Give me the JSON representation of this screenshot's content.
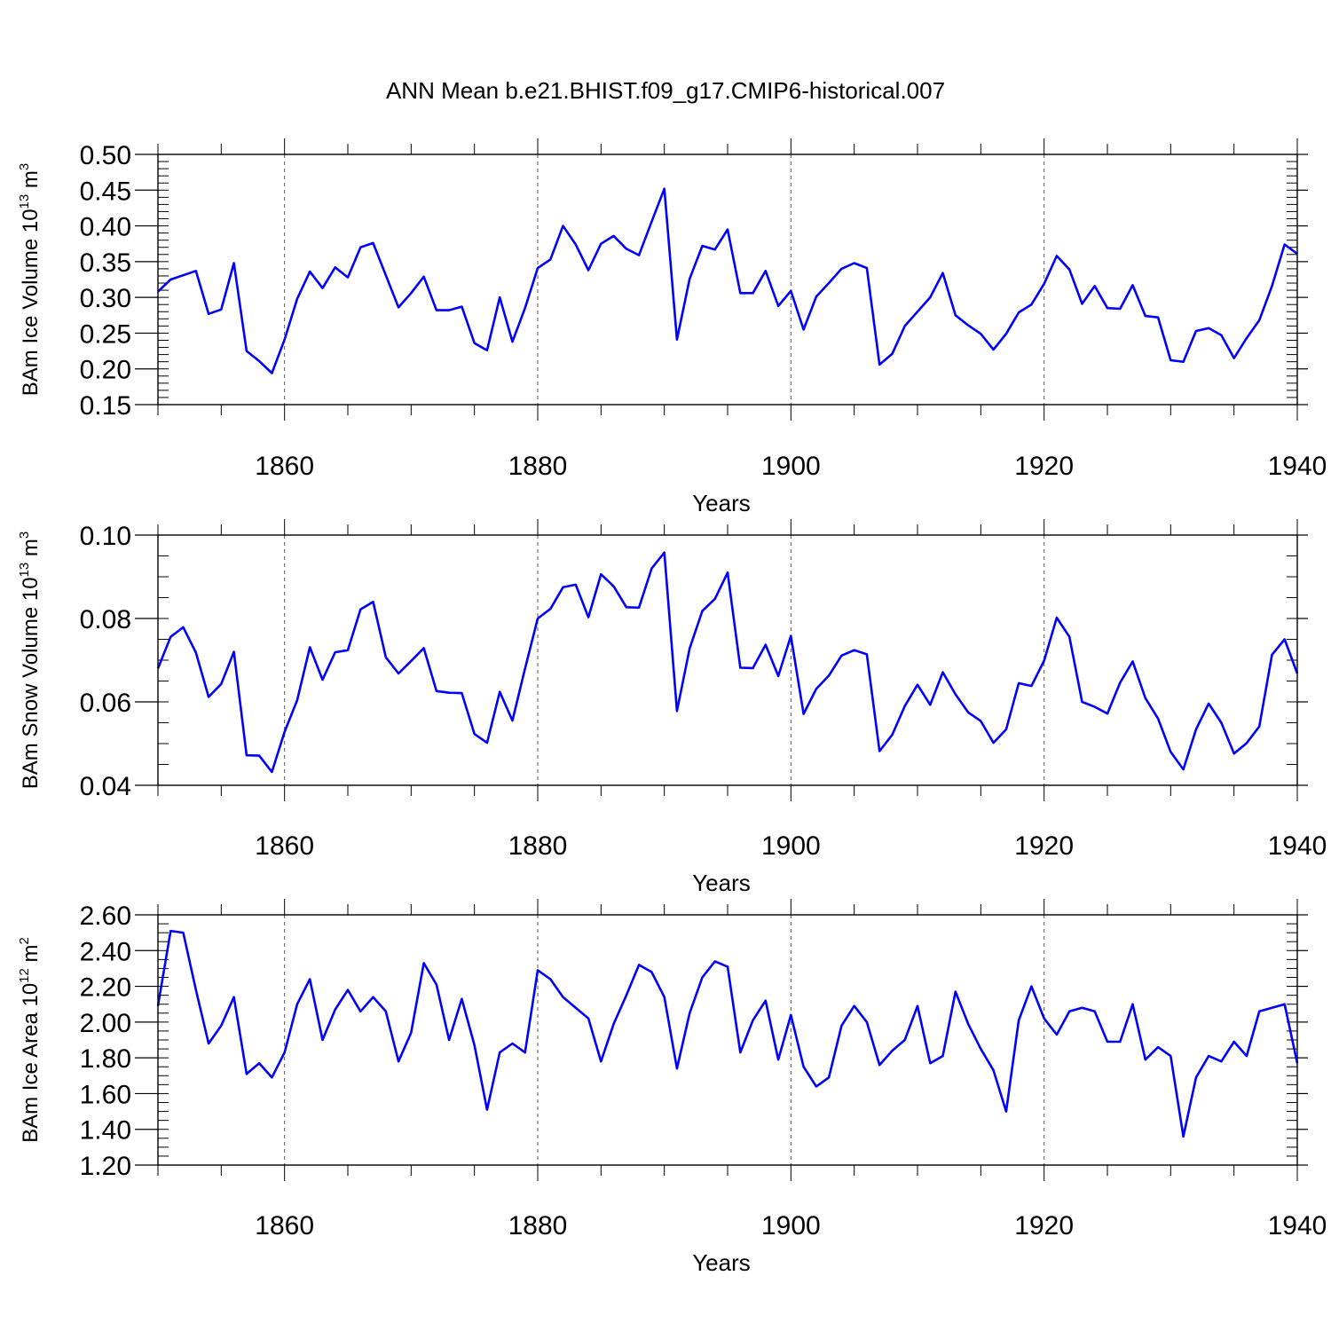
{
  "title": "ANN Mean b.e21.BHIST.f09_g17.CMIP6-historical.007",
  "chart_data": [
    {
      "type": "line",
      "ylabel": "BAm Ice Volume 10",
      "ylabel_exp": "13",
      "ylabel_unit": " m",
      "ylabel_unit_exp": "3",
      "xlabel": "Years",
      "xlim": [
        1850,
        1940
      ],
      "ylim": [
        0.15,
        0.5
      ],
      "yticks": [
        0.15,
        0.2,
        0.25,
        0.3,
        0.35,
        0.4,
        0.45,
        0.5
      ],
      "ytick_labels": [
        "0.15",
        "0.20",
        "0.25",
        "0.30",
        "0.35",
        "0.40",
        "0.45",
        "0.50"
      ],
      "yminor": 0.01,
      "xticks": [
        1860,
        1880,
        1900,
        1920,
        1940
      ],
      "xtick_labels": [
        "1860",
        "1880",
        "1900",
        "1920",
        "1940"
      ],
      "color": "#0000ff",
      "x_start": 1850,
      "values": [
        0.308,
        0.325,
        0.331,
        0.337,
        0.277,
        0.283,
        0.348,
        0.225,
        0.211,
        0.194,
        0.241,
        0.298,
        0.336,
        0.313,
        0.342,
        0.328,
        0.37,
        0.376,
        0.331,
        0.286,
        0.306,
        0.329,
        0.282,
        0.282,
        0.287,
        0.236,
        0.226,
        0.3,
        0.238,
        0.285,
        0.341,
        0.353,
        0.4,
        0.374,
        0.338,
        0.375,
        0.386,
        0.368,
        0.359,
        0.406,
        0.452,
        0.241,
        0.326,
        0.372,
        0.367,
        0.395,
        0.306,
        0.306,
        0.337,
        0.288,
        0.309,
        0.255,
        0.301,
        0.32,
        0.34,
        0.348,
        0.341,
        0.206,
        0.221,
        0.26,
        0.28,
        0.3,
        0.334,
        0.275,
        0.261,
        0.249,
        0.227,
        0.249,
        0.279,
        0.29,
        0.319,
        0.358,
        0.339,
        0.291,
        0.316,
        0.285,
        0.284,
        0.317,
        0.274,
        0.272,
        0.212,
        0.21,
        0.253,
        0.257,
        0.247,
        0.215,
        0.243,
        0.268,
        0.316,
        0.374,
        0.361
      ]
    },
    {
      "type": "line",
      "ylabel": "BAm Snow Volume 10",
      "ylabel_exp": "13",
      "ylabel_unit": " m",
      "ylabel_unit_exp": "3",
      "xlabel": "Years",
      "xlim": [
        1850,
        1940
      ],
      "ylim": [
        0.04,
        0.1
      ],
      "yticks": [
        0.04,
        0.06,
        0.08,
        0.1
      ],
      "ytick_labels": [
        "0.04",
        "0.06",
        "0.08",
        "0.10"
      ],
      "yminor": 0.005,
      "xticks": [
        1860,
        1880,
        1900,
        1920,
        1940
      ],
      "xtick_labels": [
        "1860",
        "1880",
        "1900",
        "1920",
        "1940"
      ],
      "color": "#0000ff",
      "x_start": 1850,
      "values": [
        0.068,
        0.0756,
        0.0779,
        0.0718,
        0.0612,
        0.0643,
        0.072,
        0.0472,
        0.0471,
        0.0432,
        0.0528,
        0.0604,
        0.0731,
        0.0653,
        0.0719,
        0.0724,
        0.0822,
        0.084,
        0.0707,
        0.0668,
        0.0698,
        0.0729,
        0.0626,
        0.0622,
        0.0621,
        0.0523,
        0.0502,
        0.0624,
        0.0555,
        0.068,
        0.08,
        0.0823,
        0.0875,
        0.0881,
        0.0803,
        0.0906,
        0.0877,
        0.0827,
        0.0826,
        0.092,
        0.0958,
        0.0578,
        0.0728,
        0.0818,
        0.0847,
        0.091,
        0.0682,
        0.0681,
        0.0737,
        0.0662,
        0.0758,
        0.0571,
        0.0631,
        0.0663,
        0.0711,
        0.0724,
        0.0714,
        0.0482,
        0.0521,
        0.059,
        0.0641,
        0.0593,
        0.0671,
        0.0618,
        0.0575,
        0.0554,
        0.0502,
        0.0534,
        0.0645,
        0.0638,
        0.0699,
        0.0802,
        0.0756,
        0.06,
        0.0588,
        0.0572,
        0.0646,
        0.0697,
        0.0609,
        0.056,
        0.048,
        0.0438,
        0.0534,
        0.0596,
        0.055,
        0.0476,
        0.0501,
        0.0541,
        0.0713,
        0.075,
        0.0668
      ]
    },
    {
      "type": "line",
      "ylabel": "BAm Ice Area 10",
      "ylabel_exp": "12",
      "ylabel_unit": " m",
      "ylabel_unit_exp": "2",
      "xlabel": "Years",
      "xlim": [
        1850,
        1940
      ],
      "ylim": [
        1.2,
        2.6
      ],
      "yticks": [
        1.2,
        1.4,
        1.6,
        1.8,
        2.0,
        2.2,
        2.4,
        2.6
      ],
      "ytick_labels": [
        "1.20",
        "1.40",
        "1.60",
        "1.80",
        "2.00",
        "2.20",
        "2.40",
        "2.60"
      ],
      "yminor": 0.05,
      "xticks": [
        1860,
        1880,
        1900,
        1920,
        1940
      ],
      "xtick_labels": [
        "1860",
        "1880",
        "1900",
        "1920",
        "1940"
      ],
      "color": "#0000ff",
      "x_start": 1850,
      "values": [
        2.09,
        2.51,
        2.5,
        2.18,
        1.88,
        1.98,
        2.14,
        1.71,
        1.77,
        1.69,
        1.83,
        2.1,
        2.24,
        1.9,
        2.07,
        2.18,
        2.06,
        2.14,
        2.06,
        1.78,
        1.94,
        2.33,
        2.21,
        1.9,
        2.13,
        1.87,
        1.51,
        1.83,
        1.88,
        1.83,
        2.29,
        2.24,
        2.14,
        2.08,
        2.02,
        1.78,
        1.99,
        2.15,
        2.32,
        2.28,
        2.14,
        1.74,
        2.05,
        2.25,
        2.34,
        2.31,
        1.83,
        2.01,
        2.12,
        1.79,
        2.04,
        1.75,
        1.64,
        1.69,
        1.98,
        2.09,
        2.0,
        1.76,
        1.84,
        1.9,
        2.09,
        1.77,
        1.81,
        2.17,
        1.99,
        1.85,
        1.73,
        1.5,
        2.01,
        2.2,
        2.02,
        1.93,
        2.06,
        2.08,
        2.06,
        1.89,
        1.89,
        2.1,
        1.79,
        1.86,
        1.81,
        1.36,
        1.69,
        1.81,
        1.78,
        1.89,
        1.81,
        2.06,
        2.08,
        2.1,
        1.77
      ]
    }
  ]
}
